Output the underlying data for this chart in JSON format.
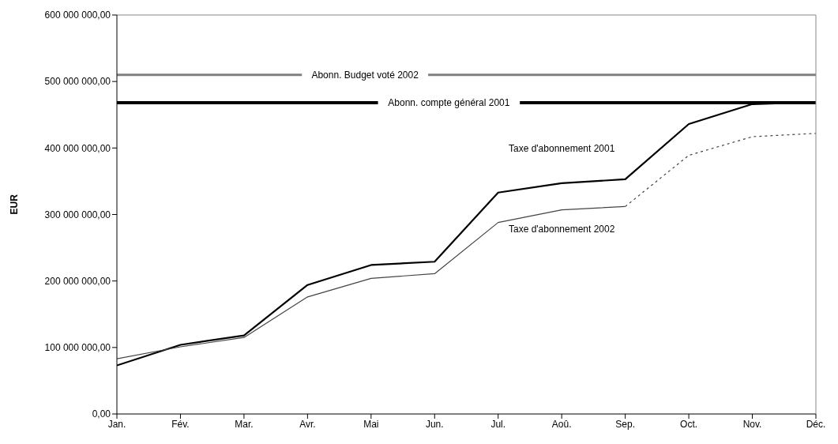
{
  "chart_data": {
    "type": "line",
    "categories": [
      "Jan.",
      "Fév.",
      "Mar.",
      "Avr.",
      "Mai",
      "Jun.",
      "Jul.",
      "Aoû.",
      "Sep.",
      "Oct.",
      "Nov.",
      "Déc."
    ],
    "ylabel": "EUR",
    "ylim": [
      0,
      600000000
    ],
    "yticks": [
      {
        "value": 0,
        "label": "0,00"
      },
      {
        "value": 100000000,
        "label": "100 000 000,00"
      },
      {
        "value": 200000000,
        "label": "200 000 000,00"
      },
      {
        "value": 300000000,
        "label": "300 000 000,00"
      },
      {
        "value": 400000000,
        "label": "400 000 000,00"
      },
      {
        "value": 500000000,
        "label": "500 000 000,00"
      },
      {
        "value": 600000000,
        "label": "600 000 000,00"
      }
    ],
    "series": [
      {
        "name": "Taxe d'abonnement 2001",
        "color": "#000000",
        "values": [
          73000000,
          104000000,
          118000000,
          194000000,
          224000000,
          229000000,
          333000000,
          347000000,
          353000000,
          436000000,
          466000000,
          469000000
        ]
      },
      {
        "name": "Taxe d'abonnement 2002",
        "color": "#444444",
        "values": [
          83000000,
          101000000,
          115000000,
          176000000,
          204000000,
          211000000,
          288000000,
          307000000,
          312000000,
          null,
          null,
          null
        ]
      },
      {
        "color": "#444444",
        "line_style": "dotted",
        "values": [
          null,
          null,
          null,
          null,
          null,
          null,
          null,
          null,
          312000000,
          389000000,
          417000000,
          422000000
        ]
      }
    ],
    "ref_lines": [
      {
        "axis": "y",
        "value": 510000000,
        "label": "Abonn. Budget voté 2002",
        "color": "#808080"
      },
      {
        "axis": "y",
        "value": 468000000,
        "label": "Abonn. compte général 2001",
        "color": "#000000"
      }
    ],
    "marker": "none"
  }
}
